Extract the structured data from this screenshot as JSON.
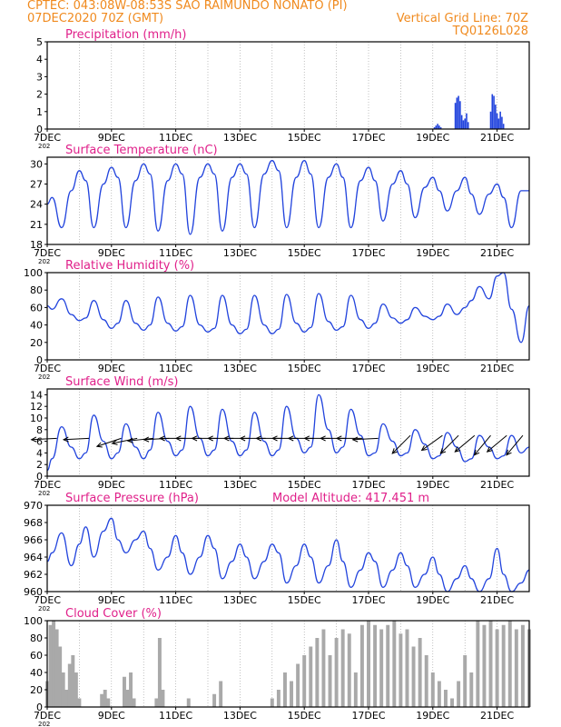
{
  "header": {
    "line1": "CPTEC:   043:08W-08:53S   SAO RAIMUNDO NONATO (PI)",
    "line2_left": "07DEC2020 70Z (GMT)",
    "line2_right": "Vertical Grid Line: 70Z",
    "line3_right": "TQ0126L028"
  },
  "x_ticks": [
    "7DEC",
    "9DEC",
    "11DEC",
    "13DEC",
    "15DEC",
    "17DEC",
    "19DEC",
    "21DEC"
  ],
  "x_year_stub": "202",
  "colors": {
    "title": "#e0208a",
    "line": "#2244dd",
    "bars": "#a9a9a9",
    "wind_arrow": "#000000",
    "header": "#f08a1e"
  },
  "chart_data": [
    {
      "id": "precip",
      "type": "bar",
      "title": "Precipitation (mm/h)",
      "ylim": [
        0,
        5
      ],
      "yticks": [
        0,
        1,
        2,
        3,
        4,
        5
      ],
      "x_day_range": [
        7.0,
        22.0
      ],
      "series": [
        {
          "x_day": [
            19.05,
            19.1,
            19.15,
            19.2,
            19.25,
            19.7,
            19.75,
            19.8,
            19.85,
            19.9,
            19.95,
            20.0,
            20.05,
            20.1,
            20.8,
            20.85,
            20.9,
            20.95,
            21.0,
            21.05,
            21.1,
            21.15,
            21.2
          ],
          "values": [
            0.1,
            0.2,
            0.3,
            0.2,
            0.1,
            1.5,
            1.8,
            1.9,
            1.6,
            0.8,
            0.5,
            0.6,
            0.9,
            0.4,
            1.0,
            2.0,
            1.9,
            1.4,
            0.9,
            0.6,
            1.0,
            0.7,
            0.3
          ]
        }
      ]
    },
    {
      "id": "temp",
      "type": "line",
      "title": "Surface Temperature (nC)",
      "ylim": [
        18,
        31
      ],
      "yticks": [
        18,
        21,
        24,
        27,
        30
      ],
      "x_day_range": [
        7.0,
        22.0
      ],
      "series": [
        {
          "x_day": [
            7.0,
            7.15,
            7.45,
            7.75,
            8.0,
            8.2,
            8.45,
            8.75,
            9.0,
            9.2,
            9.45,
            9.75,
            10.0,
            10.2,
            10.45,
            10.75,
            11.0,
            11.2,
            11.45,
            11.75,
            12.0,
            12.2,
            12.45,
            12.75,
            13.0,
            13.2,
            13.45,
            13.75,
            14.0,
            14.2,
            14.45,
            14.75,
            15.0,
            15.2,
            15.45,
            15.75,
            16.0,
            16.2,
            16.45,
            16.75,
            17.0,
            17.2,
            17.45,
            17.75,
            18.0,
            18.2,
            18.45,
            18.75,
            19.0,
            19.2,
            19.45,
            19.75,
            20.0,
            20.2,
            20.45,
            20.75,
            21.0,
            21.2,
            21.45,
            21.75,
            22.0
          ],
          "values": [
            24.0,
            25.0,
            20.5,
            26.0,
            29.0,
            27.5,
            20.5,
            27.0,
            29.5,
            28.0,
            20.5,
            27.5,
            30.0,
            28.5,
            20.0,
            27.5,
            30.0,
            28.5,
            19.5,
            28.0,
            30.0,
            28.5,
            20.0,
            28.0,
            30.0,
            28.5,
            20.5,
            28.5,
            30.5,
            29.0,
            20.5,
            28.0,
            30.5,
            28.5,
            20.5,
            28.0,
            30.0,
            28.0,
            20.5,
            27.5,
            29.5,
            27.5,
            21.5,
            27.0,
            29.0,
            27.0,
            22.0,
            26.5,
            28.0,
            26.0,
            23.0,
            26.0,
            28.0,
            25.5,
            22.5,
            25.5,
            27.0,
            25.0,
            20.5,
            26.0,
            26.0
          ]
        }
      ]
    },
    {
      "id": "rh",
      "type": "line",
      "title": "Relative Humidity (%)",
      "ylim": [
        0,
        100
      ],
      "yticks": [
        0,
        20,
        40,
        60,
        80,
        100
      ],
      "x_day_range": [
        7.0,
        22.0
      ],
      "series": [
        {
          "x_day": [
            7.0,
            7.15,
            7.45,
            7.75,
            8.0,
            8.2,
            8.45,
            8.75,
            9.0,
            9.2,
            9.45,
            9.75,
            10.0,
            10.2,
            10.45,
            10.75,
            11.0,
            11.2,
            11.45,
            11.75,
            12.0,
            12.2,
            12.45,
            12.75,
            13.0,
            13.2,
            13.45,
            13.75,
            14.0,
            14.2,
            14.45,
            14.75,
            15.0,
            15.2,
            15.45,
            15.75,
            16.0,
            16.2,
            16.45,
            16.75,
            17.0,
            17.2,
            17.45,
            17.75,
            18.0,
            18.2,
            18.45,
            18.75,
            19.0,
            19.2,
            19.45,
            19.75,
            20.0,
            20.2,
            20.45,
            20.75,
            21.0,
            21.2,
            21.45,
            21.75,
            22.0
          ],
          "values": [
            62,
            58,
            70,
            52,
            45,
            48,
            68,
            46,
            36,
            42,
            68,
            42,
            34,
            40,
            72,
            42,
            33,
            38,
            74,
            40,
            32,
            36,
            74,
            40,
            30,
            35,
            74,
            40,
            30,
            35,
            75,
            42,
            32,
            37,
            76,
            44,
            34,
            38,
            74,
            46,
            36,
            42,
            64,
            48,
            42,
            46,
            60,
            50,
            46,
            50,
            64,
            52,
            60,
            68,
            84,
            70,
            96,
            100,
            58,
            20,
            62
          ]
        }
      ]
    },
    {
      "id": "wind",
      "type": "line",
      "title": "Surface Wind (m/s)",
      "ylim": [
        0,
        15
      ],
      "yticks": [
        0,
        2,
        4,
        6,
        8,
        10,
        12,
        14
      ],
      "x_day_range": [
        7.0,
        22.0
      ],
      "series": [
        {
          "x_day": [
            7.0,
            7.15,
            7.45,
            7.75,
            8.0,
            8.2,
            8.45,
            8.75,
            9.0,
            9.2,
            9.45,
            9.75,
            10.0,
            10.2,
            10.45,
            10.75,
            11.0,
            11.2,
            11.45,
            11.75,
            12.0,
            12.2,
            12.45,
            12.75,
            13.0,
            13.2,
            13.45,
            13.75,
            14.0,
            14.2,
            14.45,
            14.75,
            15.0,
            15.2,
            15.45,
            15.75,
            16.0,
            16.2,
            16.45,
            16.75,
            17.0,
            17.2,
            17.45,
            17.75,
            18.0,
            18.2,
            18.45,
            18.75,
            19.0,
            19.2,
            19.45,
            19.75,
            20.0,
            20.2,
            20.45,
            20.75,
            21.0,
            21.2,
            21.45,
            21.75,
            22.0
          ],
          "values": [
            1.0,
            3.0,
            8.5,
            5.0,
            3.0,
            4.0,
            10.5,
            6.0,
            3.0,
            4.0,
            9.0,
            5.0,
            3.0,
            4.5,
            11.0,
            6.0,
            3.5,
            4.5,
            12.0,
            6.5,
            3.5,
            4.5,
            11.5,
            6.0,
            3.5,
            4.5,
            11.0,
            6.0,
            3.5,
            4.5,
            12.0,
            6.5,
            4.0,
            5.0,
            14.0,
            8.0,
            4.0,
            5.0,
            11.5,
            7.0,
            3.5,
            4.0,
            9.0,
            6.0,
            3.5,
            4.0,
            8.0,
            5.5,
            3.0,
            3.5,
            7.5,
            5.0,
            2.5,
            3.0,
            7.0,
            5.0,
            3.0,
            3.5,
            7.0,
            4.0,
            5.0
          ]
        }
      ],
      "wind_barbs": {
        "x_day": [
          7.3,
          8.3,
          9.3,
          9.8,
          10.3,
          10.8,
          11.3,
          11.8,
          12.3,
          12.8,
          13.3,
          13.8,
          14.3,
          14.8,
          15.3,
          15.8,
          16.3,
          16.8,
          17.3,
          18.3,
          19.3,
          19.8,
          20.3,
          20.8,
          21.3,
          21.8
        ],
        "y": [
          6.5,
          6.5,
          6.5,
          6.5,
          6.5,
          6.5,
          6.5,
          6.5,
          6.5,
          6.5,
          6.5,
          6.5,
          6.5,
          6.5,
          6.5,
          6.5,
          6.5,
          6.5,
          6.5,
          7.0,
          7.0,
          7.0,
          7.0,
          7.0,
          7.0,
          7.0
        ],
        "u": [
          -1.0,
          -1.0,
          -0.9,
          -1.0,
          -1.0,
          -1.0,
          -1.0,
          -1.0,
          -1.0,
          -1.0,
          -1.0,
          -1.0,
          -1.0,
          -1.0,
          -1.0,
          -1.0,
          -1.0,
          -1.0,
          -1.0,
          -0.6,
          -0.7,
          -0.6,
          -0.6,
          -0.5,
          -0.6,
          -0.5
        ],
        "v": [
          -0.05,
          -0.05,
          -0.3,
          -0.2,
          -0.1,
          -0.05,
          0.0,
          0.0,
          0.0,
          0.0,
          0.0,
          0.0,
          0.0,
          0.0,
          0.0,
          0.0,
          0.0,
          0.0,
          -0.05,
          -0.6,
          -0.5,
          -0.6,
          -0.5,
          -0.6,
          -0.5,
          -0.6
        ]
      }
    },
    {
      "id": "press",
      "type": "line",
      "title": "Surface Pressure (hPa)",
      "subtitle": "Model Altitude: 417.451 m",
      "ylim": [
        960,
        970
      ],
      "yticks": [
        960,
        962,
        964,
        966,
        968,
        970
      ],
      "x_day_range": [
        7.0,
        22.0
      ],
      "series": [
        {
          "x_day": [
            7.0,
            7.15,
            7.45,
            7.75,
            8.0,
            8.2,
            8.45,
            8.75,
            9.0,
            9.2,
            9.45,
            9.75,
            10.0,
            10.2,
            10.45,
            10.75,
            11.0,
            11.2,
            11.45,
            11.75,
            12.0,
            12.2,
            12.45,
            12.75,
            13.0,
            13.2,
            13.45,
            13.75,
            14.0,
            14.2,
            14.45,
            14.75,
            15.0,
            15.2,
            15.45,
            15.75,
            16.0,
            16.2,
            16.45,
            16.75,
            17.0,
            17.2,
            17.45,
            17.75,
            18.0,
            18.2,
            18.45,
            18.75,
            19.0,
            19.2,
            19.45,
            19.75,
            20.0,
            20.2,
            20.45,
            20.75,
            21.0,
            21.2,
            21.45,
            21.75,
            22.0
          ],
          "values": [
            963.5,
            964.5,
            966.8,
            963.0,
            965.5,
            967.5,
            964.0,
            967.0,
            968.5,
            966.0,
            964.5,
            966.0,
            967.0,
            965.0,
            962.5,
            964.0,
            966.5,
            964.5,
            962.0,
            964.0,
            966.5,
            965.0,
            961.5,
            963.5,
            965.5,
            964.0,
            961.5,
            963.5,
            965.5,
            964.5,
            961.0,
            963.0,
            965.5,
            964.0,
            961.0,
            963.0,
            966.0,
            963.5,
            960.5,
            962.5,
            964.5,
            963.5,
            960.5,
            962.5,
            964.5,
            963.0,
            960.5,
            962.0,
            964.0,
            962.0,
            960.0,
            961.5,
            963.0,
            961.5,
            960.0,
            961.5,
            965.0,
            962.0,
            960.0,
            961.0,
            962.5
          ]
        }
      ]
    },
    {
      "id": "cloud",
      "type": "area",
      "title": "Cloud Cover (%)",
      "ylim": [
        0,
        100
      ],
      "yticks": [
        0,
        20,
        40,
        60,
        80,
        100
      ],
      "x_day_range": [
        7.0,
        22.0
      ],
      "series": [
        {
          "x_day": [
            7.0,
            7.1,
            7.2,
            7.3,
            7.4,
            7.5,
            7.6,
            7.7,
            7.8,
            7.9,
            8.0,
            8.2,
            8.4,
            8.6,
            8.7,
            8.8,
            8.9,
            9.0,
            9.2,
            9.4,
            9.5,
            9.6,
            9.7,
            9.8,
            10.0,
            10.2,
            10.4,
            10.5,
            10.6,
            10.7,
            10.8,
            11.0,
            11.2,
            11.4,
            11.5,
            11.6,
            11.8,
            12.0,
            12.2,
            12.4,
            12.6,
            12.8,
            13.0,
            13.2,
            13.4,
            13.6,
            13.8,
            14.0,
            14.2,
            14.4,
            14.6,
            14.8,
            15.0,
            15.2,
            15.4,
            15.6,
            15.8,
            16.0,
            16.2,
            16.4,
            16.6,
            16.8,
            17.0,
            17.2,
            17.4,
            17.6,
            17.8,
            18.0,
            18.2,
            18.4,
            18.6,
            18.8,
            19.0,
            19.2,
            19.4,
            19.6,
            19.8,
            20.0,
            20.2,
            20.4,
            20.6,
            20.8,
            21.0,
            21.2,
            21.4,
            21.6,
            21.8,
            22.0
          ],
          "values": [
            30,
            95,
            100,
            90,
            70,
            40,
            20,
            50,
            60,
            40,
            10,
            0,
            0,
            0,
            15,
            20,
            10,
            0,
            0,
            35,
            20,
            40,
            10,
            0,
            0,
            0,
            10,
            80,
            20,
            0,
            0,
            0,
            0,
            10,
            0,
            0,
            0,
            0,
            15,
            30,
            0,
            0,
            0,
            0,
            0,
            0,
            0,
            10,
            20,
            40,
            30,
            50,
            60,
            70,
            80,
            90,
            60,
            80,
            90,
            85,
            40,
            95,
            100,
            95,
            90,
            95,
            100,
            85,
            90,
            70,
            80,
            60,
            40,
            30,
            20,
            10,
            30,
            60,
            40,
            100,
            95,
            100,
            90,
            95,
            100,
            90,
            95,
            90
          ]
        }
      ]
    }
  ]
}
